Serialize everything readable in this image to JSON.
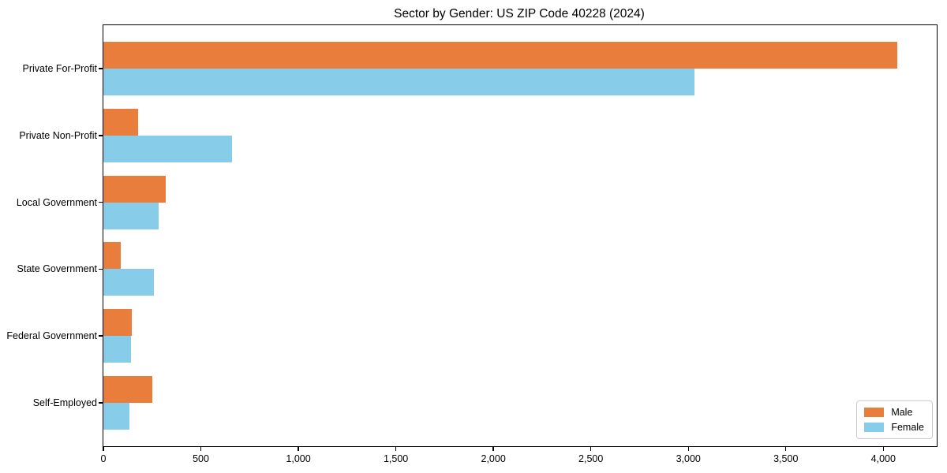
{
  "chart_data": {
    "type": "bar",
    "orientation": "horizontal",
    "title": "Sector by Gender: US ZIP Code 40228 (2024)",
    "categories": [
      "Private For-Profit",
      "Private Non-Profit",
      "Local Government",
      "State Government",
      "Federal Government",
      "Self-Employed"
    ],
    "series": [
      {
        "name": "Male",
        "color": "#e87d3c",
        "values": [
          4070,
          180,
          320,
          90,
          145,
          250
        ]
      },
      {
        "name": "Female",
        "color": "#87cdea",
        "values": [
          3030,
          660,
          285,
          260,
          140,
          135
        ]
      }
    ],
    "xlabel": "",
    "ylabel": "",
    "xlim": [
      0,
      4274
    ],
    "xticks": [
      0,
      500,
      1000,
      1500,
      2000,
      2500,
      3000,
      3500,
      4000
    ],
    "xtick_labels": [
      "0",
      "500",
      "1,000",
      "1,500",
      "2,000",
      "2,500",
      "3,000",
      "3,500",
      "4,000"
    ],
    "bar_width_fraction": 0.4,
    "category_pad": 0.65,
    "grid": false,
    "legend_position": "lower-right"
  }
}
